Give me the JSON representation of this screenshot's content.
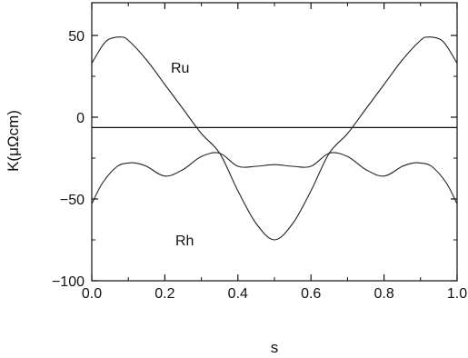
{
  "chart_data": {
    "type": "line",
    "title": "",
    "xlabel": "s",
    "ylabel": "K(μΩcm)",
    "xlim": [
      0.0,
      1.0
    ],
    "ylim": [
      -100,
      70
    ],
    "x_ticks": [
      "0.0",
      "0.2",
      "0.4",
      "0.6",
      "0.8",
      "1.0"
    ],
    "y_ticks": [
      "-100",
      "-50",
      "0",
      "50"
    ],
    "grid": false,
    "legend": "none",
    "zero_line": true,
    "series": [
      {
        "name": "Ru",
        "x": [
          0.0,
          0.03,
          0.05,
          0.08,
          0.1,
          0.15,
          0.2,
          0.25,
          0.3,
          0.35,
          0.4,
          0.45,
          0.5,
          0.55,
          0.6,
          0.65,
          0.7,
          0.75,
          0.8,
          0.85,
          0.9,
          0.92,
          0.95,
          0.97,
          1.0
        ],
        "values": [
          33,
          44,
          48,
          49,
          47,
          35,
          20,
          5,
          -10,
          -22,
          -45,
          -65,
          -75,
          -65,
          -45,
          -22,
          -10,
          5,
          20,
          35,
          47,
          49,
          48,
          44,
          33
        ]
      },
      {
        "name": "Rh",
        "x": [
          0.0,
          0.03,
          0.07,
          0.1,
          0.12,
          0.15,
          0.2,
          0.25,
          0.3,
          0.35,
          0.4,
          0.45,
          0.5,
          0.55,
          0.6,
          0.65,
          0.7,
          0.75,
          0.8,
          0.85,
          0.88,
          0.9,
          0.93,
          0.97,
          1.0
        ],
        "values": [
          -53,
          -40,
          -30,
          -28,
          -28,
          -30,
          -36,
          -32,
          -24,
          -22,
          -30,
          -30,
          -29,
          -30,
          -30,
          -22,
          -24,
          -32,
          -36,
          -30,
          -28,
          -28,
          -30,
          -40,
          -53
        ]
      }
    ]
  }
}
